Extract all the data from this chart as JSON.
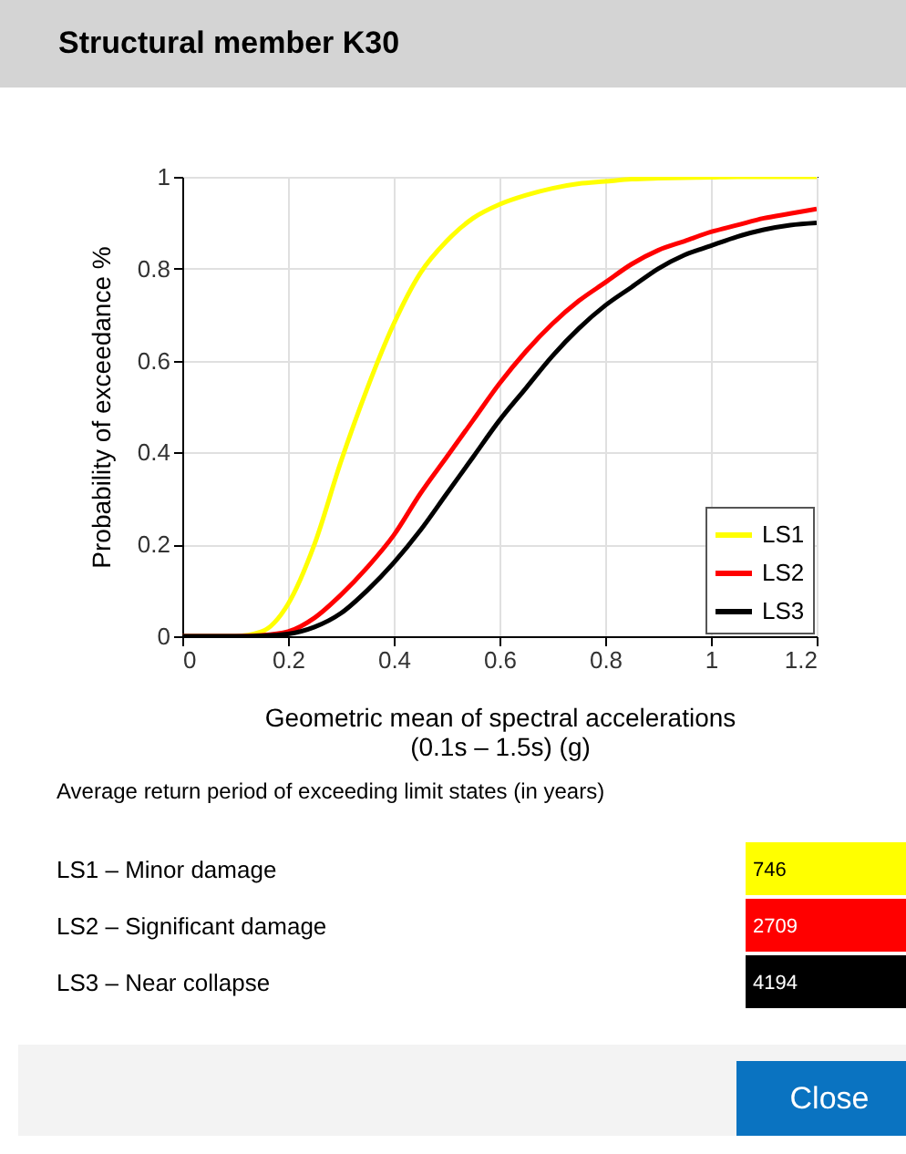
{
  "chart_data": [
    {
      "type": "line",
      "title": "Structural member K30",
      "xlabel": "Geometric mean of spectral accelerations\n(0.1s – 1.5s) (g)",
      "ylabel": "Probability of exceedance %",
      "x": [
        0,
        0.1,
        0.15,
        0.2,
        0.25,
        0.3,
        0.35,
        0.4,
        0.45,
        0.5,
        0.55,
        0.6,
        0.65,
        0.7,
        0.75,
        0.8,
        0.85,
        0.9,
        0.95,
        1.0,
        1.05,
        1.1,
        1.15,
        1.2
      ],
      "series": [
        {
          "name": "LS1",
          "color": "#ffff00",
          "values": [
            0,
            0,
            0.01,
            0.07,
            0.2,
            0.38,
            0.54,
            0.68,
            0.79,
            0.86,
            0.91,
            0.94,
            0.96,
            0.975,
            0.985,
            0.99,
            0.995,
            0.997,
            0.998,
            0.999,
            1,
            1,
            1,
            1
          ]
        },
        {
          "name": "LS2",
          "color": "#ff0000",
          "values": [
            0,
            0,
            0.002,
            0.01,
            0.04,
            0.09,
            0.15,
            0.22,
            0.31,
            0.39,
            0.47,
            0.55,
            0.62,
            0.68,
            0.73,
            0.77,
            0.81,
            0.84,
            0.86,
            0.88,
            0.895,
            0.91,
            0.92,
            0.93
          ]
        },
        {
          "name": "LS3",
          "color": "#000000",
          "values": [
            0,
            0,
            0.001,
            0.005,
            0.02,
            0.05,
            0.1,
            0.16,
            0.23,
            0.31,
            0.39,
            0.47,
            0.54,
            0.61,
            0.67,
            0.72,
            0.76,
            0.8,
            0.83,
            0.85,
            0.87,
            0.885,
            0.895,
            0.9
          ]
        }
      ],
      "xlim": [
        0,
        1.2
      ],
      "xticks": [
        0,
        0.2,
        0.4,
        0.6,
        0.8,
        1,
        1.2
      ],
      "ylim": [
        0,
        1
      ],
      "yticks": [
        0,
        0.2,
        0.4,
        0.6,
        0.8,
        1
      ],
      "grid": true,
      "legend": "bottom right",
      "line_style": "solid",
      "marker": "none"
    },
    {
      "type": "other",
      "title": "Average return period of exceeding limit states (in years)",
      "categories": [
        "LS1 – Minor damage",
        "LS2 – Significant damage",
        "LS3 – Near collapse"
      ],
      "values": [
        746,
        2709,
        4194
      ],
      "colors": [
        "#ffff00",
        "#ff0000",
        "#000000"
      ],
      "data_labels": true,
      "annotations": [
        "Close"
      ]
    }
  ]
}
